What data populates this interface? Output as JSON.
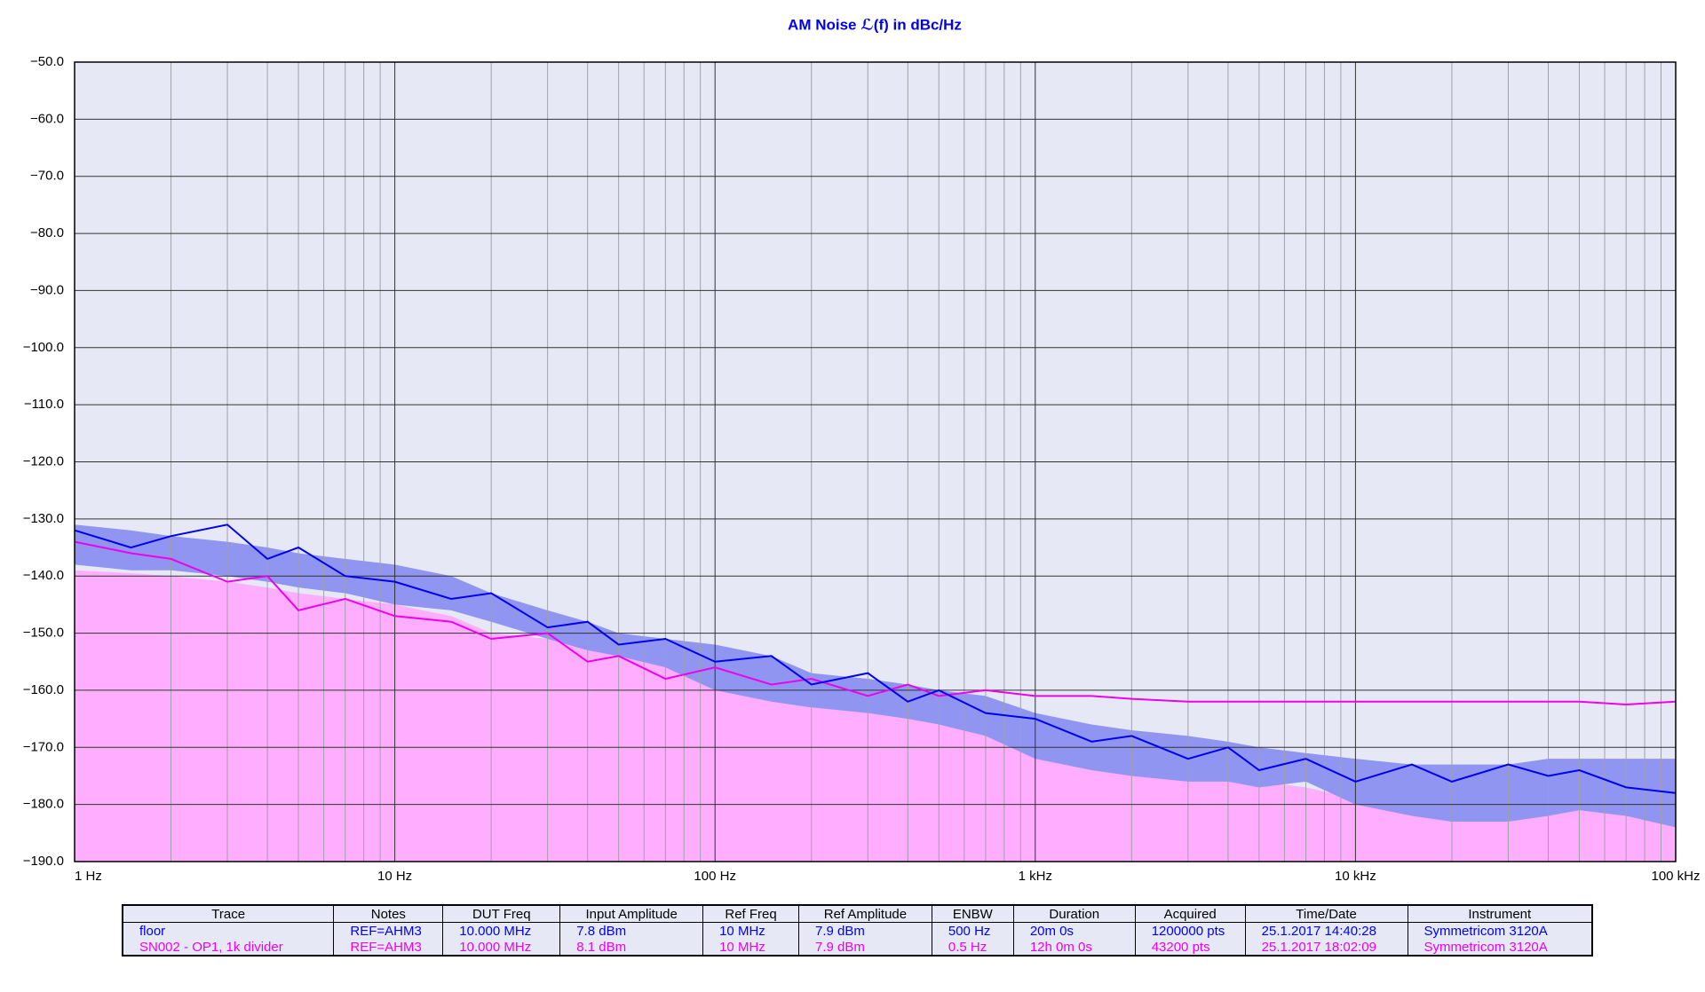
{
  "chart_data": {
    "type": "line",
    "title": "AM Noise ℒ(f) in dBc/Hz",
    "xscale": "log",
    "grid": true,
    "x": [
      1,
      1.5,
      2,
      3,
      4,
      5,
      7,
      10,
      15,
      20,
      30,
      40,
      50,
      70,
      100,
      150,
      200,
      300,
      400,
      500,
      700,
      1000,
      1500,
      2000,
      3000,
      4000,
      5000,
      7000,
      10000,
      15000,
      20000,
      30000,
      40000,
      50000,
      70000,
      100000
    ],
    "xlim": [
      1,
      100000
    ],
    "xticks": [
      {
        "value": 1,
        "label": "1 Hz"
      },
      {
        "value": 10,
        "label": "10 Hz"
      },
      {
        "value": 100,
        "label": "100 Hz"
      },
      {
        "value": 1000,
        "label": "1 kHz"
      },
      {
        "value": 10000,
        "label": "10 kHz"
      },
      {
        "value": 100000,
        "label": "100 kHz"
      }
    ],
    "ylim": [
      -190,
      -50
    ],
    "yticks": [
      {
        "value": -50,
        "label": "−50.0"
      },
      {
        "value": -60,
        "label": "−60.0"
      },
      {
        "value": -70,
        "label": "−70.0"
      },
      {
        "value": -80,
        "label": "−80.0"
      },
      {
        "value": -90,
        "label": "−90.0"
      },
      {
        "value": -100,
        "label": "−100.0"
      },
      {
        "value": -110,
        "label": "−110.0"
      },
      {
        "value": -120,
        "label": "−120.0"
      },
      {
        "value": -130,
        "label": "−130.0"
      },
      {
        "value": -140,
        "label": "−140.0"
      },
      {
        "value": -150,
        "label": "−150.0"
      },
      {
        "value": -160,
        "label": "−160.0"
      },
      {
        "value": -170,
        "label": "−170.0"
      },
      {
        "value": -180,
        "label": "−180.0"
      },
      {
        "value": -190,
        "label": "−190.0"
      }
    ],
    "series": [
      {
        "name": "SN002 - OP1, 1k divider",
        "color": "#ee00ee",
        "area_color": "#ffadff",
        "values": [
          -134,
          -136,
          -137,
          -141,
          -140,
          -146,
          -144,
          -147,
          -148,
          -151,
          -150,
          -155,
          -154,
          -158,
          -156,
          -159,
          -158,
          -161,
          -159,
          -161,
          -160,
          -161,
          -161,
          -161.5,
          -162,
          -162,
          -162,
          -162,
          -162,
          -162,
          -162,
          -162,
          -162,
          -162,
          -162.5,
          -162
        ],
        "area": [
          -139,
          -139.5,
          -140,
          -141,
          -142,
          -143,
          -144,
          -145,
          -147,
          -150,
          -151,
          -152,
          -153,
          -155,
          -158,
          -160,
          -163,
          -164,
          -165,
          -166,
          -167,
          -169,
          -171,
          -173,
          -174,
          -175,
          -176,
          -177,
          -179,
          -180,
          -181,
          -180,
          -179,
          -179,
          -181,
          -184
        ]
      },
      {
        "name": "floor",
        "color": "#0000ee",
        "band_color": "#8f95f0",
        "values": [
          -132,
          -135,
          -133,
          -131,
          -137,
          -135,
          -140,
          -141,
          -144,
          -143,
          -149,
          -148,
          -152,
          -151,
          -155,
          -154,
          -159,
          -157,
          -162,
          -160,
          -164,
          -165,
          -169,
          -168,
          -172,
          -170,
          -174,
          -172,
          -176,
          -173,
          -176,
          -173,
          -175,
          -174,
          -177,
          -178
        ],
        "band_high": [
          -131,
          -132,
          -133,
          -134,
          -135,
          -136,
          -137,
          -138,
          -140,
          -143,
          -146,
          -148,
          -150,
          -151,
          -152,
          -154,
          -157,
          -158,
          -159,
          -160,
          -161,
          -164,
          -166,
          -167,
          -168,
          -169,
          -170,
          -171,
          -172,
          -173,
          -173,
          -173,
          -172,
          -172,
          -172,
          -172
        ],
        "band_low": [
          -138,
          -139,
          -139,
          -140,
          -141,
          -142,
          -143,
          -145,
          -146,
          -148,
          -151,
          -153,
          -154,
          -156,
          -160,
          -162,
          -163,
          -164,
          -165,
          -166,
          -168,
          -172,
          -174,
          -175,
          -176,
          -176,
          -177,
          -176,
          -180,
          -182,
          -183,
          -183,
          -182,
          -181,
          -182,
          -184
        ]
      }
    ]
  },
  "table": {
    "columns": [
      "Trace",
      "Notes",
      "DUT Freq",
      "Input Amplitude",
      "Ref Freq",
      "Ref Amplitude",
      "ENBW",
      "Duration",
      "Acquired",
      "Time/Date",
      "Instrument"
    ],
    "rows": [
      {
        "color": "#0000ee",
        "cells": [
          "floor",
          "REF=AHM3",
          "10.000 MHz",
          "7.8 dBm",
          "10 MHz",
          "7.9 dBm",
          "500 Hz",
          "20m 0s",
          "1200000 pts",
          "25.1.2017 14:40:28",
          "Symmetricom 3120A"
        ]
      },
      {
        "color": "#ee00ee",
        "cells": [
          "SN002 - OP1, 1k divider",
          "REF=AHM3",
          "10.000 MHz",
          "8.1 dBm",
          "10 MHz",
          "7.9 dBm",
          "0.5 Hz",
          "12h 0m 0s",
          "43200 pts",
          "25.1.2017 18:02:09",
          "Symmetricom 3120A"
        ]
      }
    ]
  }
}
